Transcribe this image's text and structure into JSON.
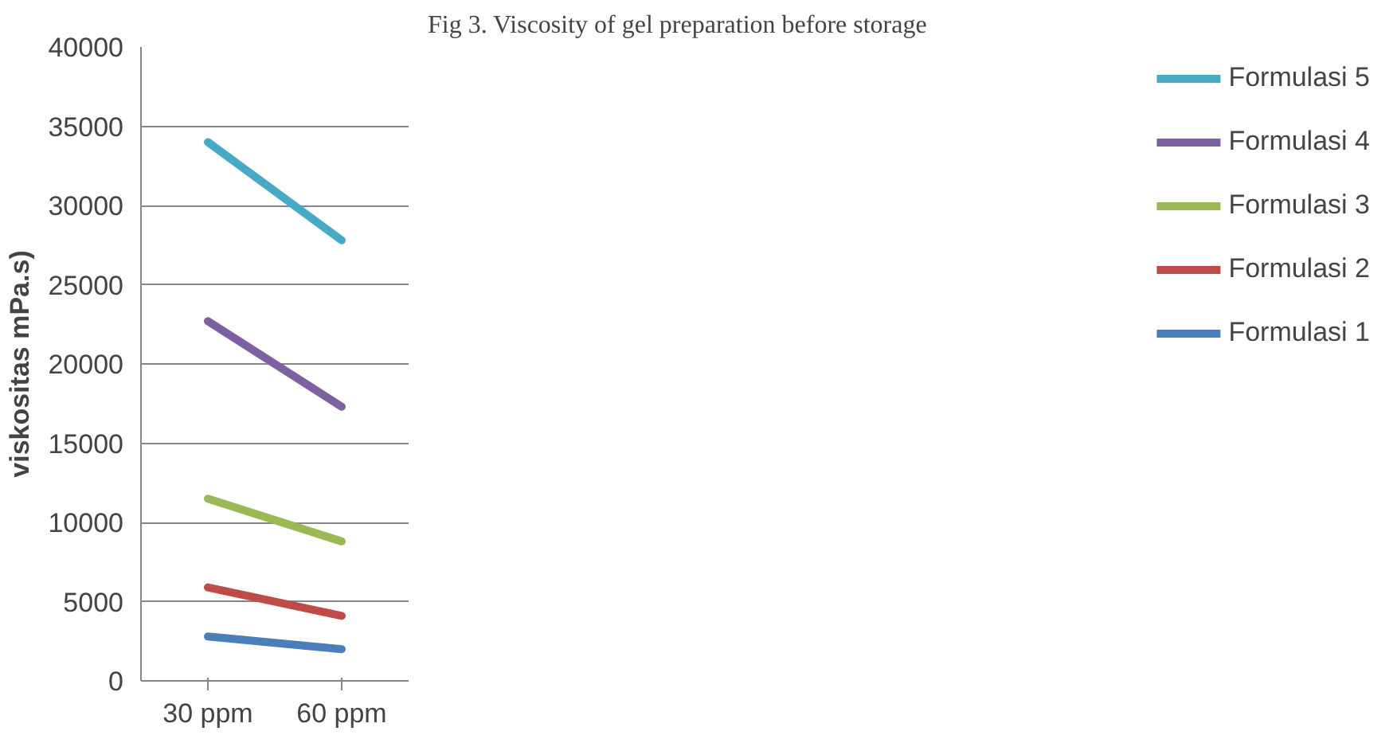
{
  "chart_data": {
    "type": "line",
    "title": "Fig 3. Viscosity of gel preparation before storage",
    "ylabel": "viskositas mPa.s)",
    "categories": [
      "30 ppm",
      "60 ppm"
    ],
    "series": [
      {
        "name": "Formulasi 1",
        "color": "#4a7ebb",
        "values": [
          2800,
          2000
        ]
      },
      {
        "name": "Formulasi 2",
        "color": "#be4b48",
        "values": [
          5900,
          4100
        ]
      },
      {
        "name": "Formulasi 3",
        "color": "#98b954",
        "values": [
          11500,
          8800
        ]
      },
      {
        "name": "Formulasi 4",
        "color": "#7d60a0",
        "values": [
          22700,
          17300
        ]
      },
      {
        "name": "Formulasi 5",
        "color": "#46aac5",
        "values": [
          34000,
          27800
        ]
      }
    ],
    "ylim": [
      0,
      40000
    ],
    "yticks": [
      0,
      5000,
      10000,
      15000,
      20000,
      25000,
      30000,
      35000,
      40000
    ],
    "grid": "y",
    "legend": "right",
    "marker": "none",
    "line_style": "solid"
  }
}
